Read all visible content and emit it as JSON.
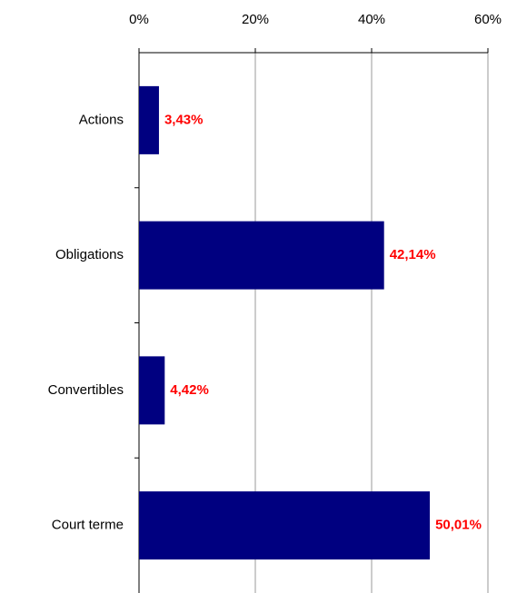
{
  "chart_data": {
    "type": "bar",
    "orientation": "horizontal",
    "categories": [
      "Actions",
      "Obligations",
      "Convertibles",
      "Court terme"
    ],
    "values": [
      3.43,
      42.14,
      4.42,
      50.01
    ],
    "value_labels": [
      "3,43%",
      "42,14%",
      "4,42%",
      "50,01%"
    ],
    "color": "#000080",
    "label_color": "#ff0000",
    "xlim": [
      0,
      60
    ],
    "xticks": [
      {
        "value": 0,
        "label": "0%"
      },
      {
        "value": 20,
        "label": "20%"
      },
      {
        "value": 40,
        "label": "40%"
      },
      {
        "value": 60,
        "label": "60%"
      }
    ],
    "grid": true
  }
}
